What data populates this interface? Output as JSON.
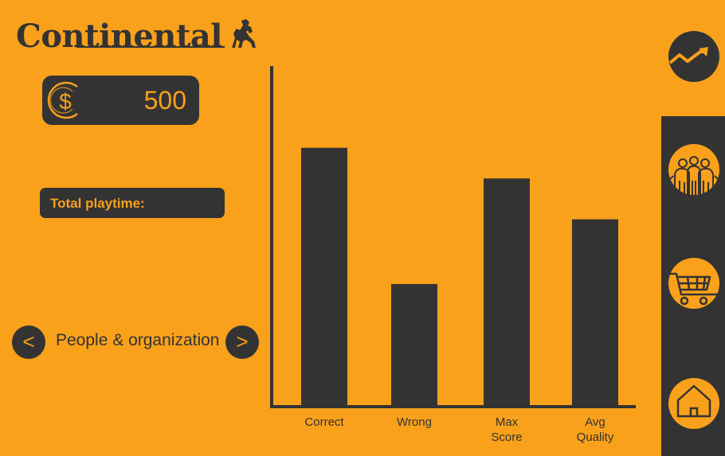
{
  "brand": {
    "name": "Continental"
  },
  "coins": {
    "value": "500",
    "icon": "dollar-coin-icon"
  },
  "playtime": {
    "label": "Total playtime:"
  },
  "category_nav": {
    "prev_label": "<",
    "next_label": ">",
    "current": "People & organization"
  },
  "chart_data": {
    "type": "bar",
    "categories": [
      "Correct",
      "Wrong",
      "Max Score",
      "Avg Quality"
    ],
    "category_lines": [
      [
        "Correct"
      ],
      [
        "Wrong"
      ],
      [
        "Max",
        "Score"
      ],
      [
        "Avg",
        "Quality"
      ]
    ],
    "values": [
      76,
      36,
      67,
      55
    ],
    "ylim": [
      0,
      100
    ],
    "title": "",
    "xlabel": "",
    "ylabel": "",
    "grid": false,
    "bar_color": "#333333"
  },
  "side_nav": {
    "items": [
      {
        "name": "stats",
        "icon": "trending-up-icon"
      },
      {
        "name": "people",
        "icon": "people-icon"
      },
      {
        "name": "shop",
        "icon": "shopping-cart-icon"
      },
      {
        "name": "home",
        "icon": "home-icon"
      }
    ]
  },
  "colors": {
    "background": "#F9A11B",
    "dark": "#333333",
    "accent": "#F9A11B"
  }
}
